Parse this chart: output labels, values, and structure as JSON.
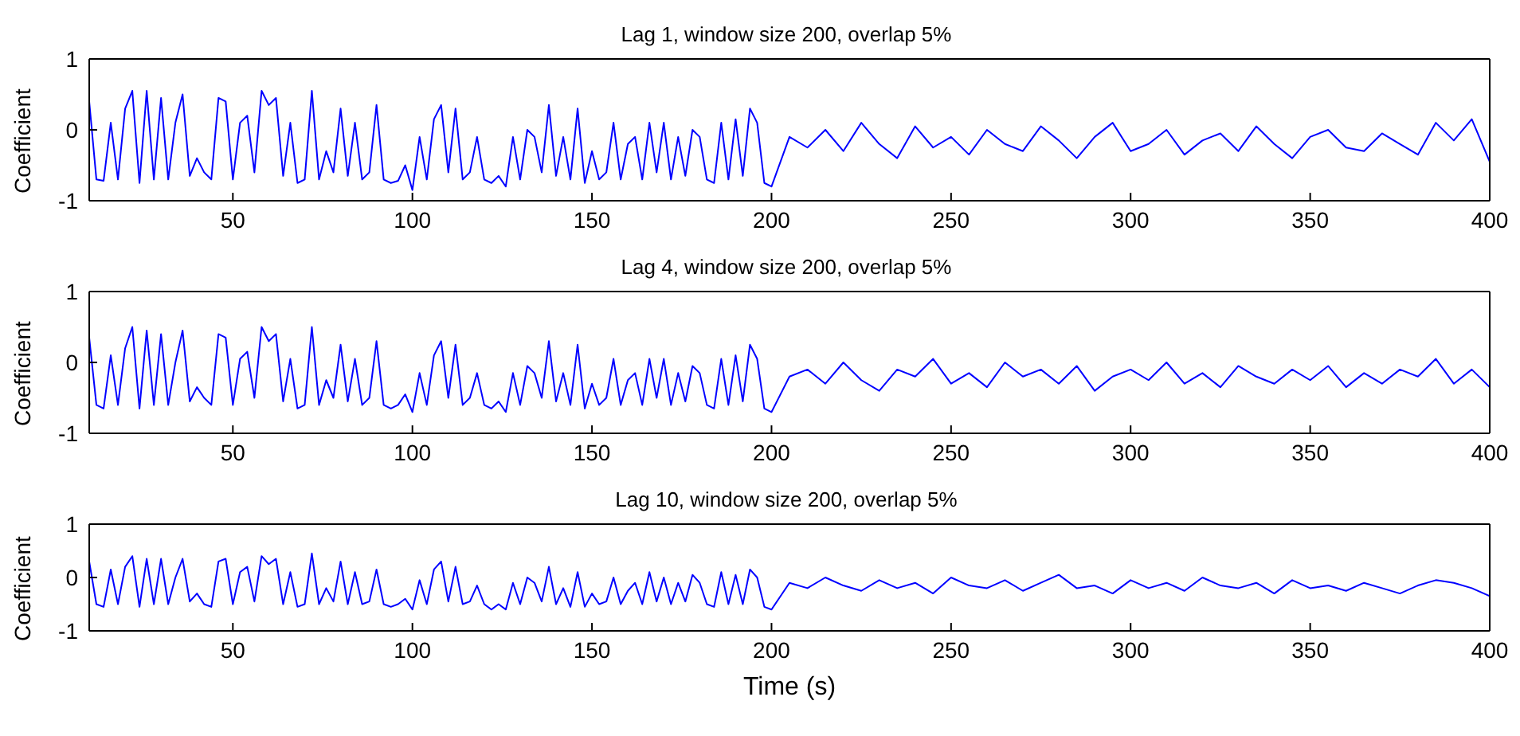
{
  "chart_data": [
    {
      "type": "line",
      "title": "Lag 1, window size 200, overlap 5%",
      "ylabel": "Coefficient",
      "color": "#0000ff",
      "xlim": [
        10,
        400
      ],
      "xticks": [
        50,
        100,
        150,
        200,
        250,
        300,
        350,
        400
      ],
      "ylim": [
        -1,
        1
      ],
      "yticks": [
        -1,
        0,
        1
      ],
      "x": [
        10,
        12,
        14,
        16,
        18,
        20,
        22,
        24,
        26,
        28,
        30,
        32,
        34,
        36,
        38,
        40,
        42,
        44,
        46,
        48,
        50,
        52,
        54,
        56,
        58,
        60,
        62,
        64,
        66,
        68,
        70,
        72,
        74,
        76,
        78,
        80,
        82,
        84,
        86,
        88,
        90,
        92,
        94,
        96,
        98,
        100,
        102,
        104,
        106,
        108,
        110,
        112,
        114,
        116,
        118,
        120,
        122,
        124,
        126,
        128,
        130,
        132,
        134,
        136,
        138,
        140,
        142,
        144,
        146,
        148,
        150,
        152,
        154,
        156,
        158,
        160,
        162,
        164,
        166,
        168,
        170,
        172,
        174,
        176,
        178,
        180,
        182,
        184,
        186,
        188,
        190,
        192,
        194,
        196,
        198,
        200,
        205,
        210,
        215,
        220,
        225,
        230,
        235,
        240,
        245,
        250,
        255,
        260,
        265,
        270,
        275,
        280,
        285,
        290,
        295,
        300,
        305,
        310,
        315,
        320,
        325,
        330,
        335,
        340,
        345,
        350,
        355,
        360,
        365,
        370,
        375,
        380,
        385,
        390,
        395,
        400
      ],
      "values": [
        0.4,
        -0.7,
        -0.72,
        0.1,
        -0.7,
        0.3,
        0.55,
        -0.75,
        0.55,
        -0.7,
        0.45,
        -0.7,
        0.1,
        0.5,
        -0.65,
        -0.4,
        -0.6,
        -0.7,
        0.45,
        0.4,
        -0.7,
        0.1,
        0.2,
        -0.6,
        0.55,
        0.35,
        0.45,
        -0.65,
        0.1,
        -0.75,
        -0.7,
        0.55,
        -0.7,
        -0.3,
        -0.6,
        0.3,
        -0.65,
        0.1,
        -0.7,
        -0.6,
        0.35,
        -0.7,
        -0.75,
        -0.72,
        -0.5,
        -0.85,
        -0.1,
        -0.7,
        0.15,
        0.35,
        -0.6,
        0.3,
        -0.7,
        -0.6,
        -0.1,
        -0.7,
        -0.75,
        -0.65,
        -0.8,
        -0.1,
        -0.7,
        0,
        -0.1,
        -0.6,
        0.35,
        -0.65,
        -0.1,
        -0.7,
        0.3,
        -0.75,
        -0.3,
        -0.7,
        -0.6,
        0.1,
        -0.7,
        -0.2,
        -0.1,
        -0.7,
        0.1,
        -0.6,
        0.1,
        -0.7,
        -0.1,
        -0.65,
        0,
        -0.1,
        -0.7,
        -0.75,
        0.1,
        -0.7,
        0.15,
        -0.65,
        0.3,
        0.1,
        -0.75,
        -0.8,
        -0.1,
        -0.25,
        0.0,
        -0.3,
        0.1,
        -0.2,
        -0.4,
        0.05,
        -0.25,
        -0.1,
        -0.35,
        0.0,
        -0.2,
        -0.3,
        0.05,
        -0.15,
        -0.4,
        -0.1,
        0.1,
        -0.3,
        -0.2,
        0.0,
        -0.35,
        -0.15,
        -0.05,
        -0.3,
        0.05,
        -0.2,
        -0.4,
        -0.1,
        0.0,
        -0.25,
        -0.3,
        -0.05,
        -0.2,
        -0.35,
        0.1,
        -0.15,
        0.15,
        -0.45
      ]
    },
    {
      "type": "line",
      "title": "Lag 4, window size 200, overlap 5%",
      "ylabel": "Coefficient",
      "color": "#0000ff",
      "xlim": [
        10,
        400
      ],
      "xticks": [
        50,
        100,
        150,
        200,
        250,
        300,
        350,
        400
      ],
      "ylim": [
        -1,
        1
      ],
      "yticks": [
        -1,
        0,
        1
      ],
      "x": [
        10,
        12,
        14,
        16,
        18,
        20,
        22,
        24,
        26,
        28,
        30,
        32,
        34,
        36,
        38,
        40,
        42,
        44,
        46,
        48,
        50,
        52,
        54,
        56,
        58,
        60,
        62,
        64,
        66,
        68,
        70,
        72,
        74,
        76,
        78,
        80,
        82,
        84,
        86,
        88,
        90,
        92,
        94,
        96,
        98,
        100,
        102,
        104,
        106,
        108,
        110,
        112,
        114,
        116,
        118,
        120,
        122,
        124,
        126,
        128,
        130,
        132,
        134,
        136,
        138,
        140,
        142,
        144,
        146,
        148,
        150,
        152,
        154,
        156,
        158,
        160,
        162,
        164,
        166,
        168,
        170,
        172,
        174,
        176,
        178,
        180,
        182,
        184,
        186,
        188,
        190,
        192,
        194,
        196,
        198,
        200,
        205,
        210,
        215,
        220,
        225,
        230,
        235,
        240,
        245,
        250,
        255,
        260,
        265,
        270,
        275,
        280,
        285,
        290,
        295,
        300,
        305,
        310,
        315,
        320,
        325,
        330,
        335,
        340,
        345,
        350,
        355,
        360,
        365,
        370,
        375,
        380,
        385,
        390,
        395,
        400
      ],
      "values": [
        0.35,
        -0.6,
        -0.65,
        0.1,
        -0.6,
        0.2,
        0.5,
        -0.65,
        0.45,
        -0.6,
        0.4,
        -0.6,
        0.0,
        0.45,
        -0.55,
        -0.35,
        -0.5,
        -0.6,
        0.4,
        0.35,
        -0.6,
        0.05,
        0.15,
        -0.5,
        0.5,
        0.3,
        0.4,
        -0.55,
        0.05,
        -0.65,
        -0.6,
        0.5,
        -0.6,
        -0.25,
        -0.5,
        0.25,
        -0.55,
        0.05,
        -0.6,
        -0.5,
        0.3,
        -0.6,
        -0.65,
        -0.6,
        -0.45,
        -0.7,
        -0.15,
        -0.6,
        0.1,
        0.3,
        -0.5,
        0.25,
        -0.6,
        -0.5,
        -0.15,
        -0.6,
        -0.65,
        -0.55,
        -0.7,
        -0.15,
        -0.6,
        -0.05,
        -0.15,
        -0.5,
        0.3,
        -0.55,
        -0.15,
        -0.6,
        0.25,
        -0.65,
        -0.3,
        -0.6,
        -0.5,
        0.05,
        -0.6,
        -0.25,
        -0.15,
        -0.6,
        0.05,
        -0.5,
        0.05,
        -0.6,
        -0.15,
        -0.55,
        -0.05,
        -0.15,
        -0.6,
        -0.65,
        0.05,
        -0.6,
        0.1,
        -0.55,
        0.25,
        0.05,
        -0.65,
        -0.7,
        -0.2,
        -0.1,
        -0.3,
        0.0,
        -0.25,
        -0.4,
        -0.1,
        -0.2,
        0.05,
        -0.3,
        -0.15,
        -0.35,
        0.0,
        -0.2,
        -0.1,
        -0.3,
        -0.05,
        -0.4,
        -0.2,
        -0.1,
        -0.25,
        0.0,
        -0.3,
        -0.15,
        -0.35,
        -0.05,
        -0.2,
        -0.3,
        -0.1,
        -0.25,
        -0.05,
        -0.35,
        -0.15,
        -0.3,
        -0.1,
        -0.2,
        0.05,
        -0.3,
        -0.1,
        -0.35
      ]
    },
    {
      "type": "line",
      "title": "Lag 10, window size 200, overlap 5%",
      "ylabel": "Coefficient",
      "xlabel": "Time (s)",
      "color": "#0000ff",
      "xlim": [
        10,
        400
      ],
      "xticks": [
        50,
        100,
        150,
        200,
        250,
        300,
        350,
        400
      ],
      "ylim": [
        -1,
        1
      ],
      "yticks": [
        -1,
        0,
        1
      ],
      "x": [
        10,
        12,
        14,
        16,
        18,
        20,
        22,
        24,
        26,
        28,
        30,
        32,
        34,
        36,
        38,
        40,
        42,
        44,
        46,
        48,
        50,
        52,
        54,
        56,
        58,
        60,
        62,
        64,
        66,
        68,
        70,
        72,
        74,
        76,
        78,
        80,
        82,
        84,
        86,
        88,
        90,
        92,
        94,
        96,
        98,
        100,
        102,
        104,
        106,
        108,
        110,
        112,
        114,
        116,
        118,
        120,
        122,
        124,
        126,
        128,
        130,
        132,
        134,
        136,
        138,
        140,
        142,
        144,
        146,
        148,
        150,
        152,
        154,
        156,
        158,
        160,
        162,
        164,
        166,
        168,
        170,
        172,
        174,
        176,
        178,
        180,
        182,
        184,
        186,
        188,
        190,
        192,
        194,
        196,
        198,
        200,
        205,
        210,
        215,
        220,
        225,
        230,
        235,
        240,
        245,
        250,
        255,
        260,
        265,
        270,
        275,
        280,
        285,
        290,
        295,
        300,
        305,
        310,
        315,
        320,
        325,
        330,
        335,
        340,
        345,
        350,
        355,
        360,
        365,
        370,
        375,
        380,
        385,
        390,
        395,
        400
      ],
      "values": [
        0.3,
        -0.5,
        -0.55,
        0.15,
        -0.5,
        0.2,
        0.4,
        -0.55,
        0.35,
        -0.5,
        0.35,
        -0.5,
        0.0,
        0.35,
        -0.45,
        -0.3,
        -0.5,
        -0.55,
        0.3,
        0.35,
        -0.5,
        0.1,
        0.2,
        -0.45,
        0.4,
        0.25,
        0.35,
        -0.5,
        0.1,
        -0.55,
        -0.5,
        0.45,
        -0.5,
        -0.2,
        -0.45,
        0.3,
        -0.5,
        0.1,
        -0.5,
        -0.45,
        0.15,
        -0.5,
        -0.55,
        -0.5,
        -0.4,
        -0.6,
        -0.05,
        -0.5,
        0.15,
        0.3,
        -0.45,
        0.2,
        -0.5,
        -0.45,
        -0.15,
        -0.5,
        -0.6,
        -0.5,
        -0.6,
        -0.1,
        -0.5,
        0.0,
        -0.1,
        -0.45,
        0.2,
        -0.5,
        -0.2,
        -0.55,
        0.1,
        -0.55,
        -0.3,
        -0.5,
        -0.45,
        0.0,
        -0.5,
        -0.25,
        -0.1,
        -0.5,
        0.1,
        -0.45,
        0.0,
        -0.5,
        -0.1,
        -0.45,
        0.05,
        -0.1,
        -0.5,
        -0.55,
        0.1,
        -0.5,
        0.05,
        -0.5,
        0.15,
        0.0,
        -0.55,
        -0.6,
        -0.1,
        -0.2,
        0.0,
        -0.15,
        -0.25,
        -0.05,
        -0.2,
        -0.1,
        -0.3,
        0.0,
        -0.15,
        -0.2,
        -0.05,
        -0.25,
        -0.1,
        0.05,
        -0.2,
        -0.15,
        -0.3,
        -0.05,
        -0.2,
        -0.1,
        -0.25,
        0.0,
        -0.15,
        -0.2,
        -0.1,
        -0.3,
        -0.05,
        -0.2,
        -0.15,
        -0.25,
        -0.1,
        -0.2,
        -0.3,
        -0.15,
        -0.05,
        -0.1,
        -0.2,
        -0.35
      ]
    }
  ]
}
